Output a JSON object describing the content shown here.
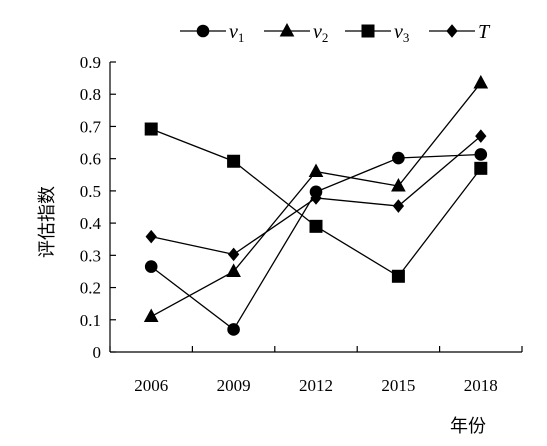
{
  "chart_data": {
    "type": "line",
    "xlabel": "年份",
    "ylabel": "评估指数",
    "categories": [
      "2006",
      "2009",
      "2012",
      "2015",
      "2018"
    ],
    "ylim": [
      0,
      0.9
    ],
    "yticks": [
      "0",
      "0.1",
      "0.2",
      "0.3",
      "0.4",
      "0.5",
      "0.6",
      "0.7",
      "0.8",
      "0.9"
    ],
    "grid": false,
    "legend_position": "top",
    "series": [
      {
        "name": "v",
        "subscript": "1",
        "marker": "circle",
        "values": [
          0.265,
          0.07,
          0.497,
          0.602,
          0.613
        ]
      },
      {
        "name": "v",
        "subscript": "2",
        "marker": "triangle",
        "values": [
          0.11,
          0.25,
          0.56,
          0.515,
          0.835
        ]
      },
      {
        "name": "v",
        "subscript": "3",
        "marker": "square",
        "values": [
          0.692,
          0.592,
          0.39,
          0.235,
          0.57
        ]
      },
      {
        "name": "T",
        "subscript": "",
        "marker": "diamond",
        "values": [
          0.358,
          0.303,
          0.478,
          0.453,
          0.67
        ]
      }
    ]
  }
}
